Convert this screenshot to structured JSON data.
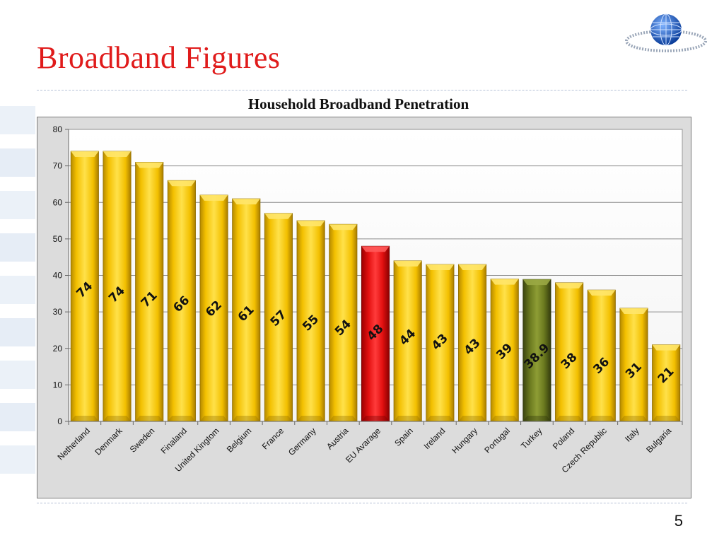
{
  "slide": {
    "title": "Broadband Figures",
    "page_number": "5"
  },
  "chart_data": {
    "type": "bar",
    "title": "Household Broadband Penetration",
    "xlabel": "",
    "ylabel": "",
    "ylim": [
      0,
      80
    ],
    "yticks": [
      0,
      10,
      20,
      30,
      40,
      50,
      60,
      70,
      80
    ],
    "grid": true,
    "legend": "none",
    "categories": [
      "Netherland",
      "Denmark",
      "Sweden",
      "Finaland",
      "United Kingtom",
      "Belgium",
      "France",
      "Germany",
      "Austria",
      "EU Avarage",
      "Spain",
      "Ireland",
      "Hungary",
      "Portugal",
      "Turkey",
      "Poland",
      "Czech Republic",
      "Italy",
      "Bulgaria"
    ],
    "values": [
      74,
      74,
      71,
      66,
      62,
      61,
      57,
      55,
      54,
      48,
      44,
      43,
      43,
      39,
      38.9,
      38,
      36,
      31,
      21
    ],
    "value_labels": [
      "74",
      "74",
      "71",
      "66",
      "62",
      "61",
      "57",
      "55",
      "54",
      "48",
      "44",
      "43",
      "43",
      "39",
      "38.9",
      "38",
      "36",
      "31",
      "21"
    ],
    "colors": {
      "default": "#f5c400",
      "highlight_eu": "#e80f0f",
      "highlight_turkey": "#6b7a1f",
      "label": "#111111"
    },
    "bar_colors": [
      "default",
      "default",
      "default",
      "default",
      "default",
      "default",
      "default",
      "default",
      "default",
      "highlight_eu",
      "default",
      "default",
      "default",
      "default",
      "highlight_turkey",
      "default",
      "default",
      "default",
      "default"
    ]
  }
}
